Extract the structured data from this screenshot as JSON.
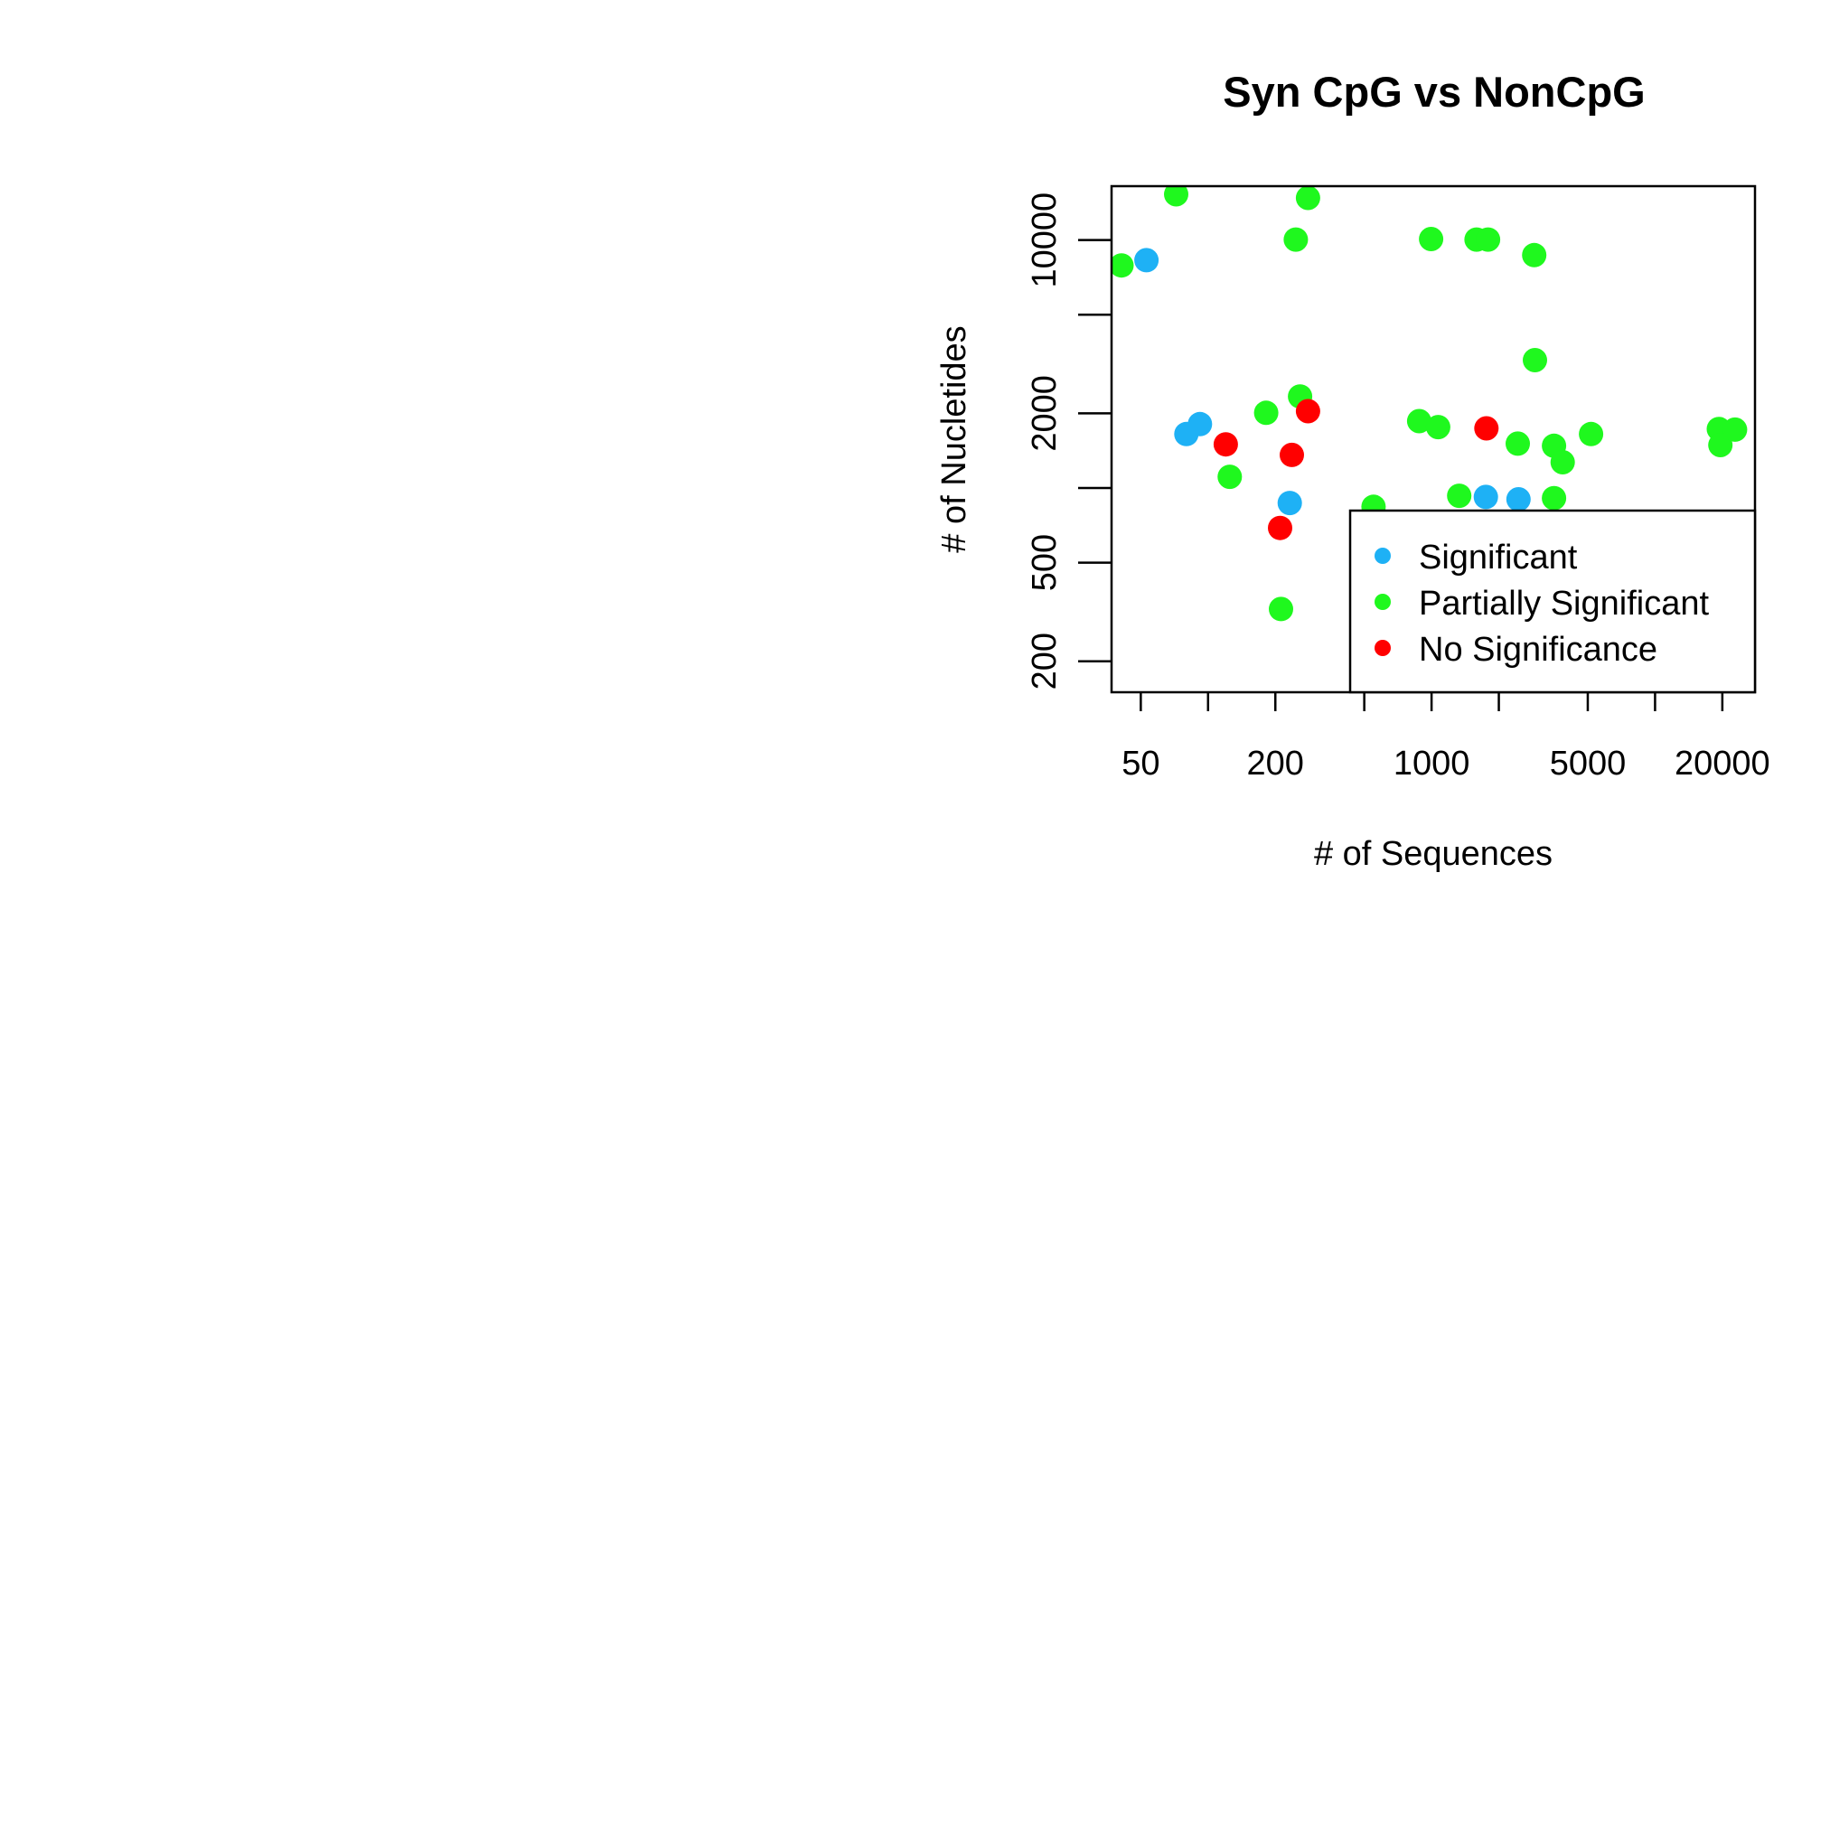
{
  "chart_data": {
    "type": "scatter",
    "title": "Syn CpG vs NonCpG",
    "xlabel": "# of Sequences",
    "ylabel": "# of Nucletides",
    "x_scale": "log",
    "y_scale": "log",
    "xlim": [
      37,
      28000
    ],
    "ylim": [
      150,
      16500
    ],
    "x_ticks": [
      50,
      100,
      200,
      500,
      1000,
      2000,
      5000,
      10000,
      20000
    ],
    "x_tick_labels": [
      "50",
      "",
      "200",
      "",
      "1000",
      "",
      "5000",
      "",
      "20000"
    ],
    "y_ticks": [
      200,
      500,
      1000,
      2000,
      5000,
      10000
    ],
    "y_tick_labels": [
      "200",
      "500",
      "",
      "2000",
      "",
      "10000"
    ],
    "grid": false,
    "legend": {
      "position": "bottom-right",
      "entries": [
        {
          "label": "Significant",
          "color": "#1eb1f5"
        },
        {
          "label": "Partially Significant",
          "color": "#1ff81e"
        },
        {
          "label": "No Significance",
          "color": "#ff0000"
        }
      ]
    },
    "series": [
      {
        "name": "Significant",
        "color": "#1eb1f5",
        "points": [
          {
            "x": 53,
            "y": 8300
          },
          {
            "x": 80,
            "y": 1650
          },
          {
            "x": 92,
            "y": 1810
          },
          {
            "x": 232,
            "y": 870
          },
          {
            "x": 1750,
            "y": 920
          },
          {
            "x": 2450,
            "y": 900
          }
        ]
      },
      {
        "name": "Partially Significant",
        "color": "#1ff81e",
        "points": [
          {
            "x": 41,
            "y": 7900
          },
          {
            "x": 72,
            "y": 15300
          },
          {
            "x": 125,
            "y": 1110
          },
          {
            "x": 182,
            "y": 2010
          },
          {
            "x": 212,
            "y": 325
          },
          {
            "x": 247,
            "y": 10050
          },
          {
            "x": 258,
            "y": 2340
          },
          {
            "x": 280,
            "y": 14800
          },
          {
            "x": 550,
            "y": 840
          },
          {
            "x": 880,
            "y": 1860
          },
          {
            "x": 995,
            "y": 10100
          },
          {
            "x": 1070,
            "y": 1760
          },
          {
            "x": 1330,
            "y": 930
          },
          {
            "x": 1590,
            "y": 10050
          },
          {
            "x": 1790,
            "y": 10050
          },
          {
            "x": 2430,
            "y": 1510
          },
          {
            "x": 2880,
            "y": 8700
          },
          {
            "x": 2900,
            "y": 3280
          },
          {
            "x": 3530,
            "y": 1480
          },
          {
            "x": 3530,
            "y": 910
          },
          {
            "x": 3860,
            "y": 1270
          },
          {
            "x": 5170,
            "y": 1650
          },
          {
            "x": 19300,
            "y": 1730
          },
          {
            "x": 19600,
            "y": 1490
          },
          {
            "x": 22800,
            "y": 1720
          }
        ]
      },
      {
        "name": "No Significance",
        "color": "#ff0000",
        "points": [
          {
            "x": 120,
            "y": 1500
          },
          {
            "x": 210,
            "y": 690
          },
          {
            "x": 237,
            "y": 1360
          },
          {
            "x": 280,
            "y": 2040
          },
          {
            "x": 1760,
            "y": 1740
          }
        ]
      }
    ]
  }
}
